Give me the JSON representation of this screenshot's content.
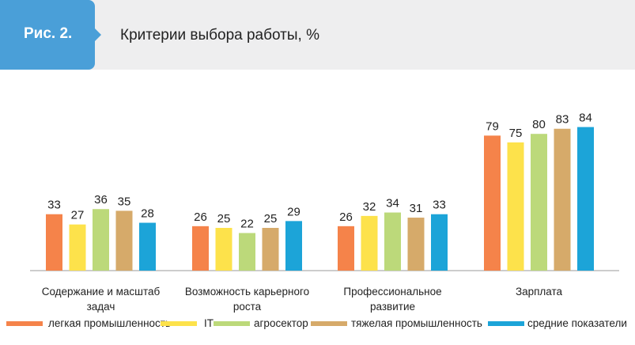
{
  "header": {
    "figure_label": "Рис. 2.",
    "title": "Критерии выбора работы, %"
  },
  "colors": {
    "badge": "#4a9fd8",
    "header_band": "#eeeeef",
    "axis": "#9a9a9a"
  },
  "chart_data": {
    "type": "bar",
    "title": "Критерии выбора работы, %",
    "categories": [
      [
        "Содержание и масштаб",
        "задач"
      ],
      [
        "Возможность карьерного",
        "роста"
      ],
      [
        "Профессиональное",
        "развитие"
      ],
      [
        "Зарплата"
      ]
    ],
    "series": [
      {
        "name": "легкая промышленность",
        "color": "#f5834a",
        "values": [
          33,
          26,
          26,
          79
        ]
      },
      {
        "name": "IT",
        "color": "#fde24b",
        "values": [
          27,
          25,
          32,
          75
        ]
      },
      {
        "name": "агросектор",
        "color": "#bcd97a",
        "values": [
          36,
          22,
          34,
          80
        ]
      },
      {
        "name": "тяжелая промышленность",
        "color": "#d6aa6a",
        "values": [
          35,
          25,
          31,
          83
        ]
      },
      {
        "name": "средние показатели",
        "color": "#1ca4d8",
        "values": [
          28,
          29,
          33,
          84
        ]
      }
    ],
    "ylim": [
      0,
      100
    ],
    "grid": false,
    "legend_position": "bottom"
  }
}
